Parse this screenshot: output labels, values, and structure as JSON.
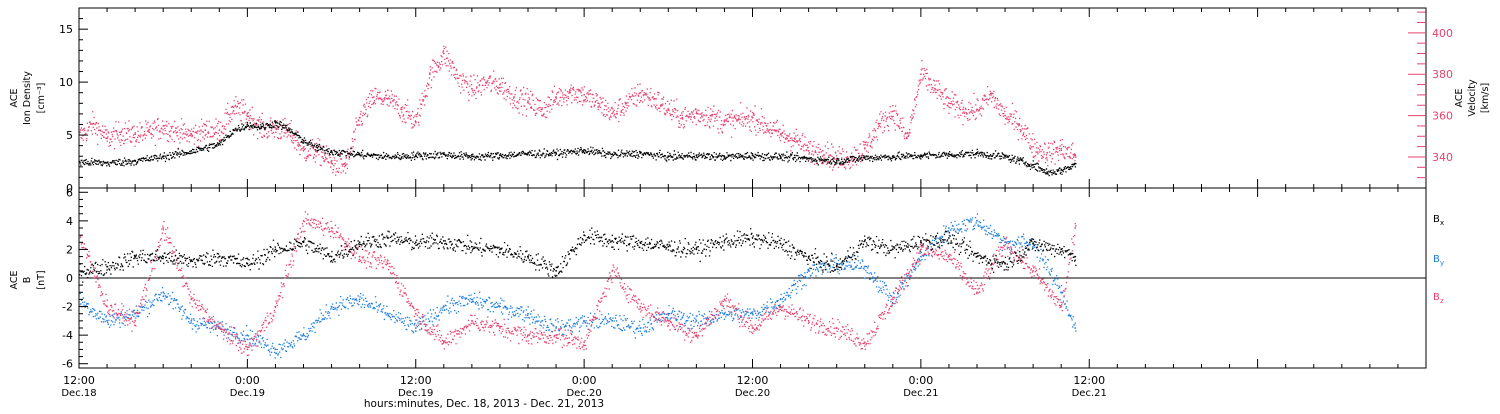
{
  "colors": {
    "pink": "#e8436f",
    "blue": "#1f7fe0",
    "black": "#000000"
  },
  "time_axis": {
    "title": "hours:minutes, Dec. 18, 2013 - Dec. 21, 2013",
    "range_hours": [
      0,
      96
    ],
    "ticks": [
      {
        "h": 0,
        "time": "12:00",
        "date": "Dec.18"
      },
      {
        "h": 12,
        "time": "0:00",
        "date": "Dec.19"
      },
      {
        "h": 24,
        "time": "12:00",
        "date": "Dec.19"
      },
      {
        "h": 36,
        "time": "0:00",
        "date": "Dec.20"
      },
      {
        "h": 48,
        "time": "12:00",
        "date": "Dec.20"
      },
      {
        "h": 60,
        "time": "0:00",
        "date": "Dec.21"
      },
      {
        "h": 72,
        "time": "12:00",
        "date": "Dec.21"
      }
    ]
  },
  "top_panel": {
    "left_label": [
      "ACE",
      "Ion Density",
      "[cm⁻³]"
    ],
    "right_label": [
      "ACE",
      "Velocity",
      "[km/s]"
    ],
    "left_ticks": [
      "0",
      "5",
      "10",
      "15"
    ],
    "right_ticks": [
      "340",
      "360",
      "380",
      "400"
    ]
  },
  "bottom_panel": {
    "left_label": [
      "ACE",
      "B",
      "[nT]"
    ],
    "left_ticks": [
      "-6",
      "-4",
      "-2",
      "0",
      "2",
      "4",
      "6"
    ],
    "legend": [
      {
        "text": "B",
        "sub": "x",
        "color": "#000000"
      },
      {
        "text": "B",
        "sub": "y",
        "color": "#1f7fe0"
      },
      {
        "text": "B",
        "sub": "z",
        "color": "#e8436f"
      }
    ]
  },
  "chart_data": [
    {
      "type": "scatter",
      "ylabel": "ACE Ion Density [cm⁻³]",
      "y2label": "ACE Velocity [km/s]",
      "xlim": [
        0,
        96
      ],
      "ylim": [
        0,
        17
      ],
      "y2lim": [
        325,
        412
      ],
      "series": [
        {
          "axis": "left",
          "color": "#000000",
          "x": [
            0,
            2,
            4,
            6,
            8,
            10,
            11,
            12,
            13,
            14,
            15,
            16,
            17,
            18,
            20,
            22,
            24,
            26,
            28,
            30,
            32,
            34,
            36,
            38,
            40,
            42,
            44,
            46,
            48,
            50,
            52,
            54,
            56,
            58,
            60,
            62,
            64,
            66,
            67,
            68,
            69,
            70,
            71
          ],
          "values": [
            2.5,
            2.4,
            2.6,
            3.0,
            3.5,
            4.2,
            5.5,
            6.0,
            5.8,
            6.2,
            5.5,
            4.5,
            3.8,
            3.5,
            3.2,
            3.0,
            3.1,
            3.2,
            3.0,
            3.1,
            3.3,
            3.3,
            3.6,
            3.2,
            3.3,
            3.0,
            3.1,
            3.0,
            3.1,
            3.0,
            2.8,
            2.6,
            2.9,
            3.0,
            3.1,
            3.2,
            3.3,
            3.0,
            2.6,
            2.2,
            1.5,
            1.7,
            2.3
          ]
        },
        {
          "axis": "right",
          "color": "#e8436f",
          "x": [
            0,
            1,
            2,
            3,
            4,
            5,
            6,
            7,
            8,
            9,
            10,
            11,
            12,
            13,
            14,
            15,
            16,
            17,
            18,
            19,
            20,
            21,
            22,
            23,
            24,
            25,
            26,
            27,
            28,
            29,
            30,
            31,
            32,
            33,
            34,
            35,
            36,
            37,
            38,
            39,
            40,
            41,
            42,
            43,
            44,
            45,
            46,
            47,
            48,
            49,
            50,
            51,
            52,
            53,
            54,
            55,
            56,
            57,
            58,
            59,
            60,
            61,
            62,
            63,
            64,
            65,
            66,
            67,
            68,
            69,
            70,
            71
          ],
          "values": [
            350,
            356,
            349,
            352,
            351,
            352,
            355,
            352,
            351,
            353,
            353,
            364,
            361,
            354,
            354,
            352,
            343,
            343,
            337,
            336,
            359,
            369,
            368,
            363,
            357,
            380,
            390,
            378,
            373,
            376,
            375,
            369,
            367,
            363,
            369,
            372,
            370,
            366,
            361,
            366,
            371,
            368,
            363,
            359,
            361,
            360,
            357,
            358,
            359,
            355,
            351,
            349,
            343,
            343,
            339,
            340,
            344,
            356,
            362,
            349,
            380,
            373,
            366,
            363,
            363,
            370,
            360,
            356,
            345,
            342,
            344,
            341
          ]
        }
      ]
    },
    {
      "type": "scatter",
      "ylabel": "ACE B [nT]",
      "xlim": [
        0,
        96
      ],
      "ylim": [
        -6.3,
        6.3
      ],
      "series": [
        {
          "name": "Bx",
          "color": "#000000",
          "x": [
            0,
            2,
            4,
            6,
            8,
            10,
            12,
            14,
            16,
            18,
            20,
            22,
            24,
            26,
            28,
            30,
            32,
            34,
            36,
            38,
            40,
            42,
            44,
            46,
            48,
            50,
            52,
            54,
            56,
            58,
            60,
            62,
            64,
            66,
            68,
            70,
            71
          ],
          "values": [
            0.5,
            0.8,
            1.5,
            1.5,
            1.2,
            1.5,
            1.0,
            2.0,
            2.5,
            1.5,
            2.5,
            2.8,
            2.5,
            2.6,
            2.2,
            2.0,
            1.5,
            0.5,
            3.0,
            2.6,
            2.5,
            2.2,
            2.0,
            2.6,
            2.8,
            2.4,
            1.4,
            0.8,
            2.6,
            2.0,
            2.6,
            2.8,
            1.5,
            1.0,
            2.4,
            2.0,
            1.5
          ]
        },
        {
          "name": "By",
          "color": "#1f7fe0",
          "x": [
            0,
            2,
            4,
            6,
            8,
            10,
            12,
            14,
            16,
            18,
            20,
            22,
            24,
            26,
            28,
            30,
            32,
            34,
            36,
            38,
            40,
            42,
            44,
            46,
            48,
            50,
            52,
            54,
            56,
            58,
            60,
            62,
            64,
            66,
            68,
            70,
            71
          ],
          "values": [
            -1.5,
            -3.0,
            -2.5,
            -1.0,
            -3.0,
            -3.5,
            -4.0,
            -5.0,
            -4.0,
            -2.0,
            -1.5,
            -2.5,
            -3.5,
            -2.0,
            -1.5,
            -2.0,
            -2.5,
            -3.5,
            -3.0,
            -3.0,
            -3.5,
            -2.5,
            -3.0,
            -2.5,
            -2.5,
            -1.5,
            0.5,
            1.0,
            0.8,
            -1.5,
            1.5,
            3.5,
            4.0,
            2.5,
            2.5,
            -1.0,
            -3.5
          ]
        },
        {
          "name": "Bz",
          "color": "#e8436f",
          "x": [
            0,
            2,
            4,
            6,
            8,
            10,
            12,
            14,
            16,
            18,
            20,
            22,
            24,
            26,
            28,
            30,
            32,
            34,
            36,
            38,
            40,
            42,
            44,
            46,
            48,
            50,
            52,
            54,
            56,
            58,
            60,
            62,
            64,
            66,
            68,
            70,
            71
          ],
          "values": [
            3.0,
            -2.0,
            -3.0,
            3.5,
            -1.5,
            -3.5,
            -5.0,
            -2.0,
            4.0,
            3.5,
            1.5,
            1.0,
            -2.5,
            -4.5,
            -3.0,
            -3.5,
            -4.0,
            -4.0,
            -4.5,
            0.5,
            -2.0,
            -3.0,
            -4.0,
            -1.5,
            -3.5,
            -2.0,
            -3.0,
            -3.5,
            -4.5,
            -1.5,
            2.0,
            1.5,
            -1.0,
            2.5,
            0.5,
            -2.0,
            3.5
          ]
        }
      ]
    }
  ]
}
